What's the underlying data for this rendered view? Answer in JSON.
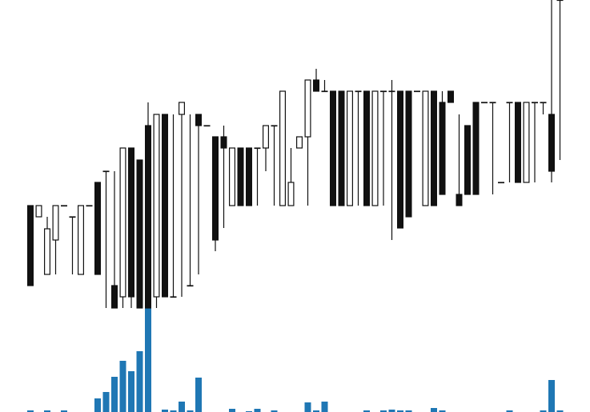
{
  "chart_data": {
    "type": "candlestick",
    "open": [
      143,
      129,
      57,
      100,
      143,
      129,
      57,
      143,
      172,
      186,
      43,
      29,
      215,
      200,
      243,
      29,
      257,
      29,
      257,
      43,
      257,
      243,
      229,
      229,
      143,
      215,
      215,
      215,
      215,
      243,
      143,
      143,
      215,
      229,
      300,
      286,
      286,
      286,
      143,
      286,
      286,
      143,
      286,
      286,
      286,
      286,
      286,
      143,
      286,
      272,
      286,
      157,
      243,
      272,
      272,
      272,
      172,
      272,
      272,
      172,
      272,
      272,
      257,
      400
    ],
    "high": [
      143,
      143,
      129,
      143,
      143,
      129,
      143,
      143,
      172,
      186,
      186,
      215,
      215,
      200,
      272,
      257,
      257,
      257,
      272,
      257,
      257,
      243,
      229,
      243,
      215,
      215,
      215,
      215,
      243,
      243,
      286,
      215,
      229,
      300,
      314,
      300,
      286,
      286,
      286,
      286,
      286,
      286,
      286,
      300,
      286,
      286,
      286,
      286,
      286,
      286,
      286,
      257,
      243,
      272,
      272,
      272,
      172,
      272,
      272,
      272,
      272,
      272,
      400,
      400
    ],
    "low": [
      43,
      129,
      57,
      57,
      143,
      57,
      57,
      143,
      57,
      15,
      15,
      15,
      15,
      15,
      15,
      15,
      29,
      29,
      29,
      43,
      57,
      243,
      86,
      115,
      143,
      143,
      143,
      143,
      186,
      143,
      143,
      143,
      215,
      143,
      286,
      286,
      143,
      143,
      143,
      143,
      143,
      143,
      143,
      100,
      115,
      129,
      286,
      143,
      143,
      157,
      272,
      143,
      157,
      157,
      272,
      157,
      172,
      172,
      172,
      172,
      172,
      257,
      172,
      200
    ],
    "close": [
      43,
      143,
      114,
      143,
      143,
      129,
      143,
      143,
      57,
      186,
      15,
      215,
      29,
      15,
      15,
      257,
      29,
      29,
      272,
      43,
      243,
      243,
      100,
      215,
      215,
      143,
      143,
      215,
      243,
      243,
      286,
      172,
      229,
      300,
      286,
      286,
      143,
      143,
      286,
      286,
      143,
      286,
      286,
      286,
      115,
      129,
      286,
      286,
      143,
      157,
      272,
      143,
      157,
      157,
      272,
      272,
      172,
      272,
      172,
      272,
      272,
      272,
      186,
      400
    ],
    "volume": [
      2,
      0,
      2,
      0,
      2,
      0,
      0,
      0,
      17,
      25,
      44,
      64,
      51,
      76,
      130,
      0,
      3,
      2,
      13,
      2,
      43,
      0,
      0,
      0,
      4,
      0,
      1,
      4,
      0,
      2,
      0,
      0,
      0,
      12,
      2,
      13,
      0,
      0,
      0,
      0,
      2,
      0,
      2,
      3,
      2,
      2,
      0,
      0,
      5,
      2,
      0,
      0,
      0,
      0,
      0,
      0,
      0,
      2,
      0,
      0,
      0,
      2,
      40,
      2
    ],
    "ylim": [
      15,
      400
    ],
    "vlim": [
      0,
      130
    ],
    "up_color": "#ffffff",
    "down_color": "#111111",
    "edge_color": "#111111",
    "volume_color": "#1f77b4"
  }
}
